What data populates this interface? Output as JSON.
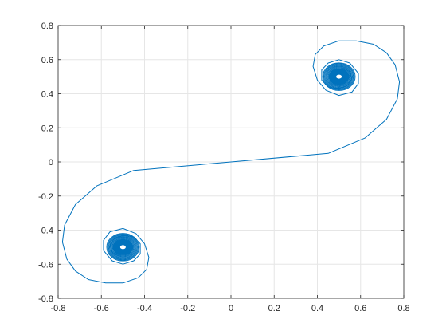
{
  "chart_data": {
    "type": "line",
    "title": "",
    "xlabel": "",
    "ylabel": "",
    "xlim": [
      -0.8,
      0.8
    ],
    "ylim": [
      -0.8,
      0.8
    ],
    "xticks": [
      -0.8,
      -0.6,
      -0.4,
      -0.2,
      0,
      0.2,
      0.4,
      0.6,
      0.8
    ],
    "yticks": [
      -0.8,
      -0.6,
      -0.4,
      -0.2,
      0,
      0.2,
      0.4,
      0.6,
      0.8
    ],
    "xtick_labels": [
      "-0.8",
      "-0.6",
      "-0.4",
      "-0.2",
      "0",
      "0.2",
      "0.4",
      "0.6",
      "0.8"
    ],
    "ytick_labels": [
      "-0.8",
      "-0.6",
      "-0.4",
      "-0.2",
      "0",
      "0.2",
      "0.4",
      "0.6",
      "0.8"
    ],
    "grid": true,
    "line_color": "#0072BD",
    "grid_color": "#e6e6e6",
    "axis_color": "#262626",
    "series": [
      {
        "x": [
          0,
          0.45,
          0.62,
          0.72,
          0.77,
          0.78,
          0.76,
          0.72,
          0.66,
          0.58,
          0.5,
          0.43,
          0.39,
          0.38,
          0.4,
          0.44,
          0.5,
          0.56,
          0.59,
          0.59,
          0.55,
          0.5,
          0.45,
          0.42,
          0.42,
          0.45,
          0.5,
          0.54,
          0.56,
          0.55,
          0.52,
          0.5
        ],
        "y": [
          0,
          0.05,
          0.14,
          0.25,
          0.37,
          0.47,
          0.57,
          0.64,
          0.69,
          0.71,
          0.71,
          0.68,
          0.63,
          0.56,
          0.48,
          0.42,
          0.39,
          0.41,
          0.46,
          0.52,
          0.58,
          0.6,
          0.58,
          0.54,
          0.48,
          0.44,
          0.43,
          0.45,
          0.49,
          0.53,
          0.55,
          0.5
        ]
      },
      {
        "x": [
          0,
          -0.45,
          -0.62,
          -0.72,
          -0.77,
          -0.78,
          -0.76,
          -0.72,
          -0.66,
          -0.58,
          -0.5,
          -0.43,
          -0.39,
          -0.38,
          -0.4,
          -0.44,
          -0.5,
          -0.56,
          -0.59,
          -0.59,
          -0.55,
          -0.5,
          -0.45,
          -0.42,
          -0.42,
          -0.45,
          -0.5,
          -0.54,
          -0.56,
          -0.55,
          -0.52,
          -0.5
        ],
        "y": [
          0,
          -0.05,
          -0.14,
          -0.25,
          -0.37,
          -0.47,
          -0.57,
          -0.64,
          -0.69,
          -0.71,
          -0.71,
          -0.68,
          -0.63,
          -0.56,
          -0.48,
          -0.42,
          -0.39,
          -0.41,
          -0.46,
          -0.52,
          -0.58,
          -0.6,
          -0.58,
          -0.54,
          -0.48,
          -0.44,
          -0.43,
          -0.45,
          -0.49,
          -0.53,
          -0.55,
          -0.5
        ]
      }
    ],
    "attractors": [
      {
        "x": 0.5,
        "y": 0.5
      },
      {
        "x": -0.5,
        "y": -0.5
      }
    ]
  }
}
